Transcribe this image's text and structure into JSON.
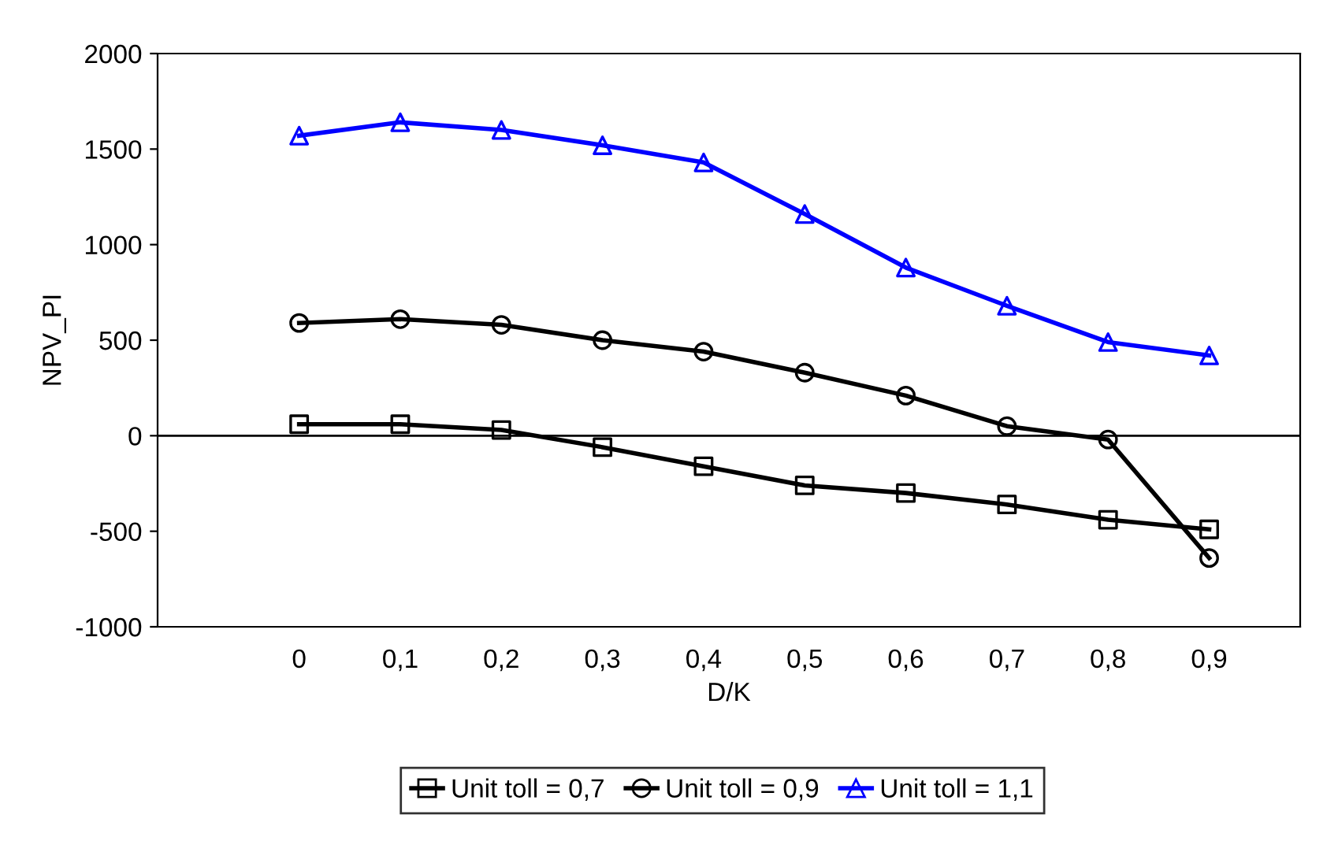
{
  "chart_data": {
    "type": "line",
    "xlabel": "D/K",
    "ylabel": "NPV_PI",
    "categories": [
      "0",
      "0,1",
      "0,2",
      "0,3",
      "0,4",
      "0,5",
      "0,6",
      "0,7",
      "0,8",
      "0,9"
    ],
    "ylim": [
      -1000,
      2000
    ],
    "yticks": [
      -1000,
      -500,
      0,
      500,
      1000,
      1500,
      2000
    ],
    "grid": false,
    "legend": "bottom",
    "ref_lines": [
      {
        "axis": "y",
        "value": 0,
        "color": "#000000"
      }
    ],
    "series": [
      {
        "name": "Unit toll = 0,7",
        "color": "#000000",
        "marker": "square",
        "values": [
          60,
          60,
          30,
          -60,
          -160,
          -260,
          -300,
          -360,
          -440,
          -490
        ]
      },
      {
        "name": "Unit toll = 0,9",
        "color": "#000000",
        "marker": "circle",
        "values": [
          590,
          610,
          580,
          500,
          440,
          330,
          210,
          50,
          -20,
          -640
        ]
      },
      {
        "name": "Unit toll = 1,1",
        "color": "#0000ff",
        "marker": "triangle",
        "values": [
          1570,
          1640,
          1600,
          1520,
          1430,
          1160,
          880,
          680,
          490,
          420
        ]
      }
    ]
  }
}
